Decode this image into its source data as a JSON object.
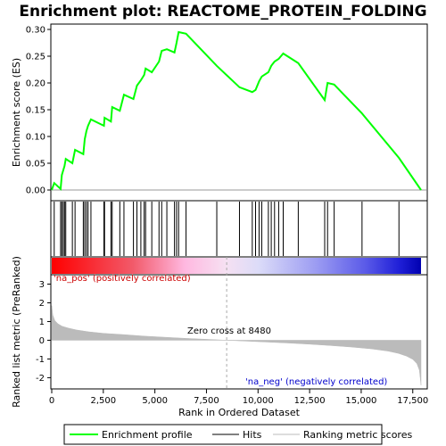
{
  "chart_data": {
    "type": "line",
    "title": "Enrichment plot: REACTOME_PROTEIN_FOLDING",
    "xlabel": "Rank in Ordered Dataset",
    "ylabel_top": "Enrichment score (ES)",
    "ylabel_bottom": "Ranked list metric (PreRanked)",
    "xlim": [
      0,
      18000
    ],
    "x_ticks": [
      0,
      2500,
      5000,
      7500,
      10000,
      12500,
      15000,
      17500
    ],
    "x_tick_labels": [
      "0",
      "2,500",
      "5,000",
      "7,500",
      "10,000",
      "12,500",
      "15,000",
      "17,500"
    ],
    "es_ylim": [
      -0.02,
      0.31
    ],
    "es_ticks": [
      0.0,
      0.05,
      0.1,
      0.15,
      0.2,
      0.25,
      0.3
    ],
    "es_tick_labels": [
      "0.00",
      "0.05",
      "0.10",
      "0.15",
      "0.20",
      "0.25",
      "0.30"
    ],
    "metric_ylim": [
      -2.6,
      3.5
    ],
    "metric_ticks": [
      -2,
      -1,
      0,
      1,
      2,
      3
    ],
    "metric_tick_labels": [
      "-2",
      "-1",
      "0",
      "1",
      "2",
      "3"
    ],
    "zero_cross_rank": 8480,
    "zero_cross_label": "Zero cross at 8480",
    "pos_label": "'na_pos' (positively correlated)",
    "neg_label": "'na_neg' (negatively correlated)",
    "legend": {
      "entries": [
        "Enrichment profile",
        "Hits",
        "Ranking metric scores"
      ],
      "colors": [
        "#00ff00",
        "#000000",
        "#bbbbbb"
      ]
    },
    "colors": {
      "profile": "#00ff00",
      "metric_fill": "#bbbbbb",
      "zero_line": "#999999"
    },
    "series": [
      {
        "name": "Enrichment profile",
        "x": [
          0,
          120,
          430,
          490,
          620,
          680,
          1000,
          1130,
          1530,
          1600,
          1680,
          1760,
          1900,
          2530,
          2560,
          2870,
          2930,
          3300,
          3500,
          3960,
          4130,
          4320,
          4480,
          4550,
          4850,
          5200,
          5330,
          5580,
          5950,
          6050,
          6150,
          6510,
          8000,
          9100,
          9720,
          9880,
          10050,
          10180,
          10500,
          10640,
          10800,
          11000,
          11220,
          11950,
          13230,
          13370,
          13690,
          15040,
          16830,
          17900
        ],
        "y": [
          0.0,
          0.013,
          0.002,
          0.028,
          0.045,
          0.058,
          0.05,
          0.075,
          0.067,
          0.095,
          0.11,
          0.12,
          0.132,
          0.12,
          0.135,
          0.128,
          0.155,
          0.148,
          0.178,
          0.17,
          0.195,
          0.205,
          0.215,
          0.227,
          0.22,
          0.24,
          0.26,
          0.263,
          0.257,
          0.275,
          0.295,
          0.292,
          0.232,
          0.192,
          0.183,
          0.187,
          0.203,
          0.212,
          0.22,
          0.232,
          0.24,
          0.245,
          0.255,
          0.237,
          0.168,
          0.2,
          0.197,
          0.143,
          0.06,
          0.0
        ]
      }
    ],
    "hits": [
      120,
      430,
      490,
      560,
      620,
      680,
      1000,
      1130,
      1530,
      1600,
      1680,
      1760,
      1900,
      2530,
      2560,
      2870,
      2930,
      3300,
      3500,
      3960,
      4130,
      4320,
      4480,
      4550,
      4850,
      5200,
      5330,
      5580,
      5950,
      6050,
      6150,
      6510,
      8000,
      9100,
      9720,
      9880,
      10050,
      10180,
      10500,
      10640,
      10800,
      11000,
      11220,
      11950,
      13230,
      13370,
      13690,
      15040,
      16830
    ],
    "metric_curve": {
      "x": [
        0,
        50,
        150,
        300,
        500,
        800,
        1200,
        1800,
        2500,
        3500,
        4500,
        5500,
        6500,
        7500,
        8480,
        9500,
        10500,
        11500,
        12500,
        13500,
        14500,
        15500,
        16300,
        16800,
        17200,
        17500,
        17700,
        17820,
        17900
      ],
      "y": [
        1.85,
        1.35,
        1.05,
        0.88,
        0.75,
        0.65,
        0.55,
        0.45,
        0.37,
        0.3,
        0.22,
        0.16,
        0.1,
        0.05,
        0.0,
        -0.05,
        -0.1,
        -0.15,
        -0.21,
        -0.28,
        -0.36,
        -0.46,
        -0.58,
        -0.7,
        -0.85,
        -1.02,
        -1.25,
        -1.6,
        -2.4
      ]
    }
  }
}
